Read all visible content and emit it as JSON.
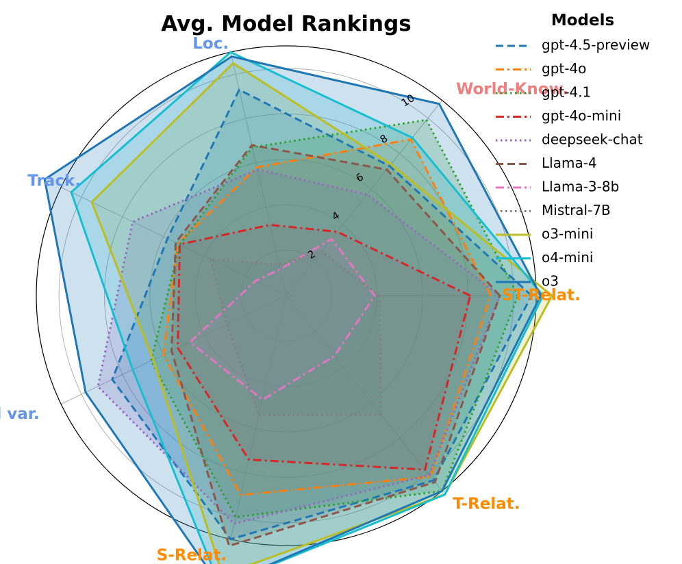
{
  "chart_data": {
    "type": "radar",
    "title": "Avg. Model Rankings",
    "axes": [
      {
        "label": "ST-Relat.",
        "color": "#ff8c00"
      },
      {
        "label": "World-Know.",
        "color": "#f08080"
      },
      {
        "label": "Loc.",
        "color": "#6495ed"
      },
      {
        "label": "Track.",
        "color": "#6495ed"
      },
      {
        "label": "Field var.",
        "color": "#6495ed"
      },
      {
        "label": "S-Relat.",
        "color": "#ff8c00"
      },
      {
        "label": "T-Relat.",
        "color": "#ff8c00"
      }
    ],
    "rlim": [
      0,
      11
    ],
    "rticks": [
      2,
      4,
      6,
      8,
      10
    ],
    "rtick_labels": [
      "2",
      "4",
      "6",
      "8",
      "10"
    ],
    "legend_title": "Models",
    "series": [
      {
        "name": "gpt-4.5-preview",
        "values": [
          10.8,
          7.3,
          9.3,
          5.8,
          8.5,
          11.0,
          10.4
        ],
        "color": "#1f77b4",
        "dash": "dashed"
      },
      {
        "name": "gpt-4o",
        "values": [
          9.0,
          8.8,
          5.8,
          5.3,
          6.0,
          9.0,
          10.2
        ],
        "color": "#ff7f0e",
        "dash": "dashdot"
      },
      {
        "name": "gpt-4.1",
        "values": [
          10.2,
          9.9,
          6.7,
          5.2,
          6.6,
          10.0,
          11.0
        ],
        "color": "#2ca02c",
        "dash": "dotted"
      },
      {
        "name": "gpt-4o-mini",
        "values": [
          8.1,
          3.6,
          3.2,
          5.2,
          5.3,
          7.4,
          9.8
        ],
        "color": "#d62728",
        "dash": "dashdot"
      },
      {
        "name": "deepseek-chat",
        "values": [
          9.4,
          5.7,
          5.7,
          7.5,
          9.2,
          10.3,
          10.1
        ],
        "color": "#9467bd",
        "dash": "dotted"
      },
      {
        "name": "Llama-4",
        "values": [
          9.4,
          7.1,
          6.8,
          5.4,
          5.6,
          11.3,
          10.5
        ],
        "color": "#8c564b",
        "dash": "dashed"
      },
      {
        "name": "Llama-3-8b",
        "values": [
          3.9,
          3.2,
          1.2,
          1.5,
          4.7,
          4.7,
          3.4
        ],
        "color": "#e377c2",
        "dash": "dashdot"
      },
      {
        "name": "Mistral-7B",
        "values": [
          4.1,
          2.5,
          1.4,
          3.7,
          2.9,
          5.4,
          6.7
        ],
        "color": "#7f7f7f",
        "dash": "dotted"
      },
      {
        "name": "o3-mini",
        "values": [
          11.7,
          7.4,
          10.5,
          9.5,
          6.5,
          12.6,
          11.2
        ],
        "color": "#bcbd22",
        "dash": "solid"
      },
      {
        "name": "o4-mini",
        "values": [
          11.3,
          8.9,
          11.0,
          10.5,
          7.5,
          13.1,
          11.2
        ],
        "color": "#17becf",
        "dash": "solid"
      },
      {
        "name": "o3",
        "values": [
          11.2,
          10.8,
          10.8,
          11.8,
          9.8,
          13.1,
          11.0
        ],
        "color": "#1f77b4",
        "dash": "solid",
        "filled": true
      }
    ]
  }
}
